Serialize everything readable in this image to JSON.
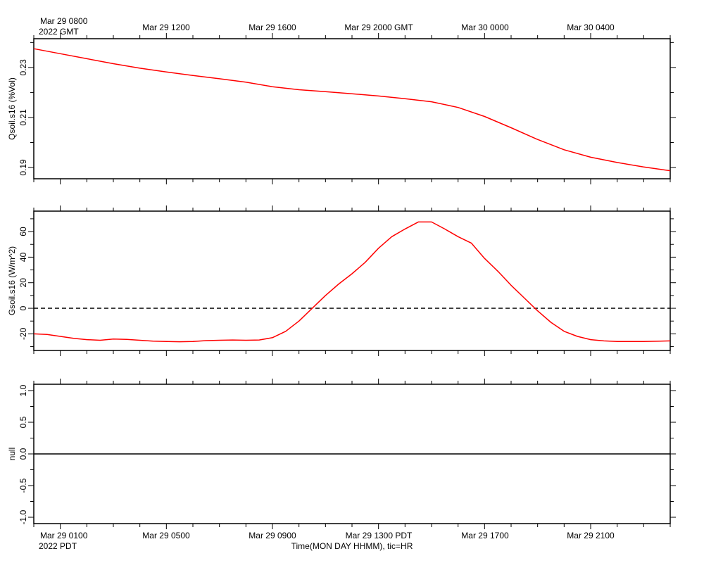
{
  "top_axis": {
    "corner_label_line1": "Mar 29 0800",
    "corner_label_line2": "2022 GMT",
    "tick_labels": [
      "Mar 29 1200",
      "Mar 29 1600",
      "Mar 29 2000 GMT",
      "Mar 30 0000",
      "Mar 30 0400"
    ]
  },
  "bottom_axis": {
    "corner_label_line1": "Mar 29 0100",
    "corner_label_line2": "2022 PDT",
    "tick_labels": [
      "Mar 29 0500",
      "Mar 29 0900",
      "Mar 29 1300 PDT",
      "Mar 29 1700",
      "Mar 29 2100"
    ],
    "title": "Time(MON DAY HHMM), tic=HR"
  },
  "chart_data": [
    {
      "type": "line",
      "ylabel": "Qsoil.s16 (%Vol)",
      "ylim": [
        0.1855,
        0.2415
      ],
      "yticks": [
        0.19,
        0.21,
        0.23
      ],
      "ytick_labels": [
        "0.19",
        "0.21",
        "0.23"
      ],
      "xlim": [
        -1,
        23
      ],
      "x_unit": "hours after Mar 29 0000 PDT",
      "grid": false,
      "color": "#ff0000",
      "series": [
        {
          "x": [
            -1,
            0,
            1,
            2,
            3,
            4,
            5,
            6,
            7,
            8,
            9,
            10,
            11,
            12,
            13,
            14,
            15,
            16,
            17,
            18,
            19,
            20,
            21,
            22,
            23
          ],
          "values": [
            0.2375,
            0.2355,
            0.2335,
            0.2315,
            0.2297,
            0.2282,
            0.2268,
            0.2255,
            0.2241,
            0.2223,
            0.2211,
            0.2203,
            0.2195,
            0.2186,
            0.2175,
            0.2163,
            0.214,
            0.2104,
            0.2059,
            0.2012,
            0.1971,
            0.1941,
            0.192,
            0.1902,
            0.1887
          ]
        }
      ]
    },
    {
      "type": "line",
      "ylabel": "Gsoil.s16 (W/m^2)",
      "ylim": [
        -33,
        76
      ],
      "yticks": [
        -20,
        0,
        20,
        40,
        60
      ],
      "ytick_labels": [
        "-20",
        "0",
        "20",
        "40",
        "60"
      ],
      "xlim": [
        -1,
        23
      ],
      "x_unit": "hours after Mar 29 0000 PDT",
      "grid": false,
      "color": "#ff0000",
      "reference_line": {
        "y": 0,
        "style": "dashed",
        "color": "#000000"
      },
      "series": [
        {
          "x": [
            -1,
            -0.5,
            0,
            0.5,
            1,
            1.5,
            2,
            2.5,
            3,
            3.5,
            4,
            4.5,
            5,
            5.5,
            6,
            6.5,
            7,
            7.5,
            8,
            8.5,
            9,
            9.5,
            10,
            10.5,
            11,
            11.5,
            12,
            12.5,
            13,
            13.5,
            14,
            14.5,
            15,
            15.5,
            16,
            16.5,
            17,
            17.5,
            18,
            18.5,
            19,
            19.5,
            20,
            20.5,
            21,
            21.5,
            22,
            22.5,
            23
          ],
          "values": [
            -20,
            -20.5,
            -22,
            -23.5,
            -24.5,
            -25,
            -24,
            -24.3,
            -25,
            -25.7,
            -26,
            -26.2,
            -26,
            -25.3,
            -25,
            -24.8,
            -25,
            -24.8,
            -23,
            -18,
            -10,
            0,
            10,
            19,
            27,
            36,
            47,
            56,
            62,
            67.5,
            67.5,
            62,
            56,
            51,
            39,
            29,
            18,
            8,
            -2,
            -11,
            -18,
            -22,
            -24.5,
            -25.5,
            -26,
            -26,
            -26,
            -25.8,
            -25.5
          ]
        }
      ]
    },
    {
      "type": "line",
      "ylabel": "null",
      "ylim": [
        -1.1,
        1.1
      ],
      "yticks": [
        -1.0,
        -0.5,
        0.0,
        0.5,
        1.0
      ],
      "ytick_labels": [
        "-1.0",
        "-0.5",
        "0.0",
        "0.5",
        "1.0"
      ],
      "xlim": [
        -1,
        23
      ],
      "x_unit": "hours after Mar 29 0000 PDT",
      "grid": false,
      "reference_line": {
        "y": 0,
        "style": "solid",
        "color": "#000000"
      },
      "series": []
    }
  ]
}
